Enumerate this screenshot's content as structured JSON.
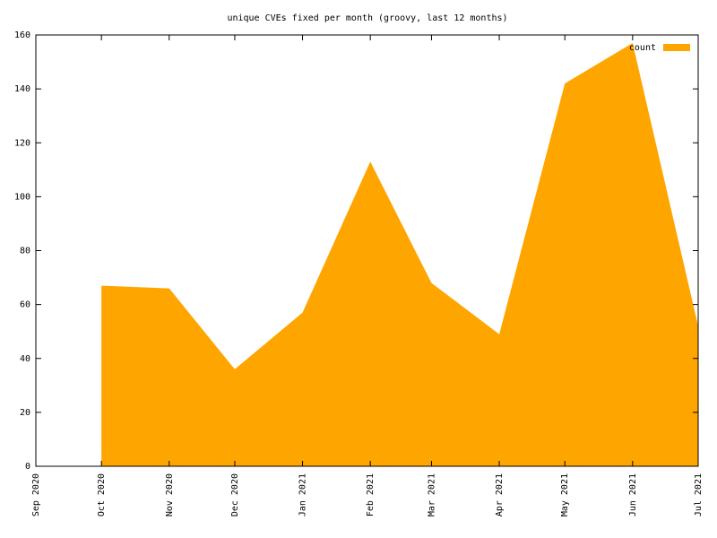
{
  "chart_data": {
    "type": "area",
    "title": "unique CVEs fixed per month (groovy, last 12 months)",
    "x": [
      "Oct 2020",
      "Nov 2020",
      "Dec 2020",
      "Jan 2021",
      "Feb 2021",
      "Mar 2021",
      "Apr 2021",
      "May 2021",
      "Jun 2021",
      "Jul 2021"
    ],
    "series": [
      {
        "name": "count",
        "color": "#ffa500",
        "values": [
          67,
          66,
          36,
          57,
          113,
          68,
          49,
          142,
          157,
          52
        ]
      }
    ],
    "xlim": [
      "Sep 2020",
      "Jul 2021"
    ],
    "xticks": [
      "Sep 2020",
      "Oct 2020",
      "Nov 2020",
      "Dec 2020",
      "Jan 2021",
      "Feb 2021",
      "Mar 2021",
      "Apr 2021",
      "May 2021",
      "Jun 2021",
      "Jul 2021"
    ],
    "ylim": [
      0,
      160
    ],
    "yticks": [
      0,
      20,
      40,
      60,
      80,
      100,
      120,
      140,
      160
    ],
    "legend": "top-right",
    "grid": false
  }
}
